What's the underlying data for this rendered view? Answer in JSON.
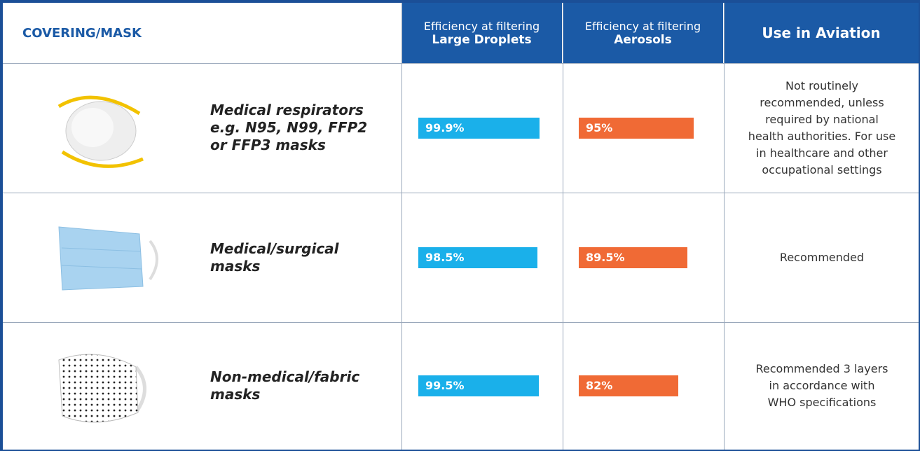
{
  "header": {
    "covering": "COVERING/MASK",
    "droplets": {
      "line1": "Efficiency at filtering",
      "line2": "Large Droplets"
    },
    "aerosols": {
      "line1": "Efficiency at filtering",
      "line2": "Aerosols"
    },
    "aviation": "Use in Aviation"
  },
  "droplet_color": "#1ab0ea",
  "aerosol_color": "#f06a35",
  "rows": [
    {
      "name": [
        "Medical respirators",
        "e.g. N95, N99, FFP2",
        "or FFP3 masks"
      ],
      "values": [
        99.9,
        95
      ],
      "value_labels": [
        "99.9%",
        "95%"
      ],
      "use": [
        "Not routinely",
        "recommended, unless",
        "required by national",
        "health authorities. For use",
        "in healthcare and other",
        "occupational settings"
      ]
    },
    {
      "name": [
        "Medical/surgical",
        "masks"
      ],
      "values": [
        98.5,
        89.5
      ],
      "value_labels": [
        "98.5%",
        "89.5%"
      ],
      "use": [
        "Recommended"
      ]
    },
    {
      "name": [
        "Non-medical/fabric",
        "masks"
      ],
      "values": [
        99.5,
        82
      ],
      "value_labels": [
        "99.5%",
        "82%"
      ],
      "use": [
        "Recommended 3 layers",
        "in accordance with",
        "WHO specifications"
      ]
    }
  ]
}
